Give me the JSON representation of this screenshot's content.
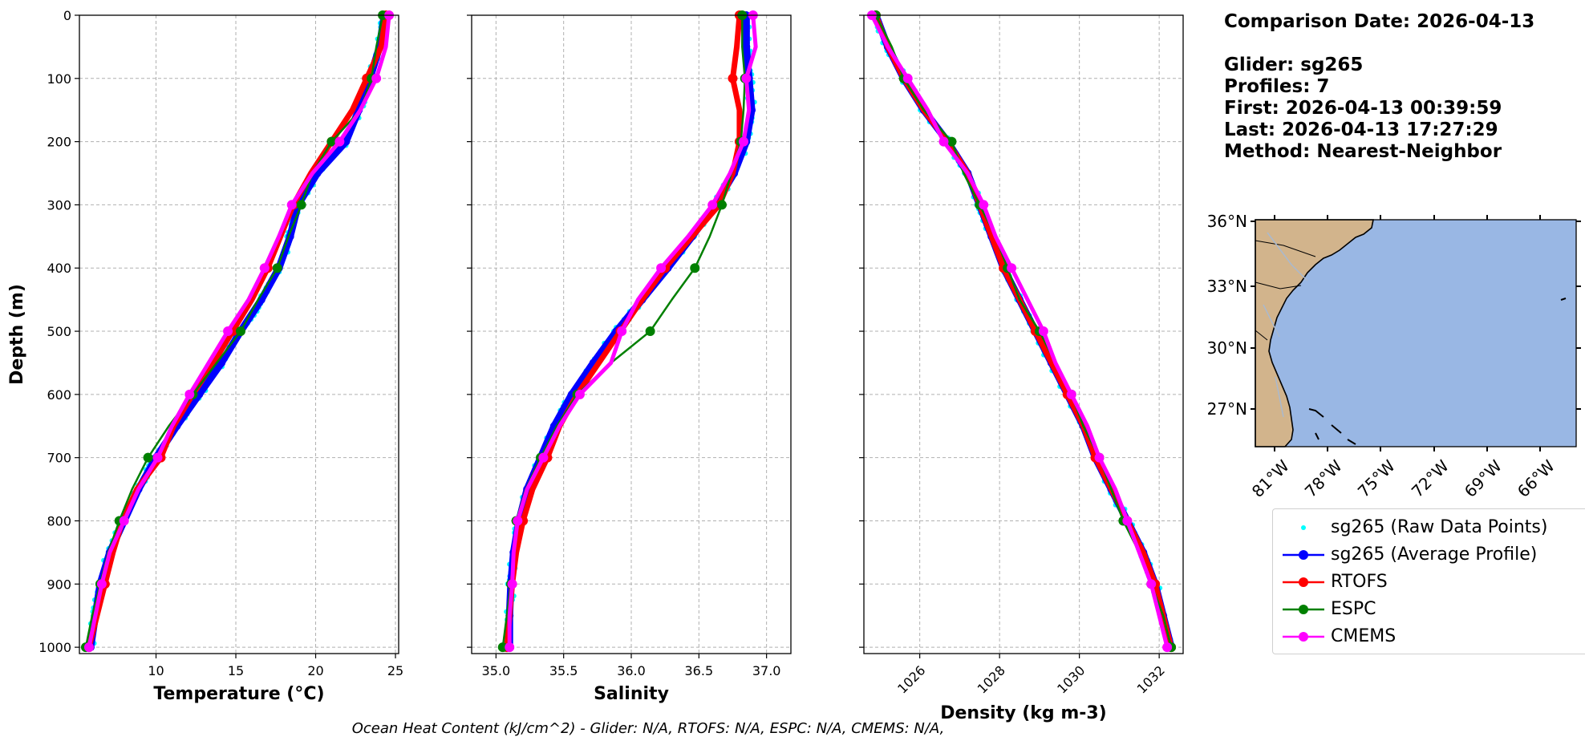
{
  "info": {
    "comparison_date": "Comparison Date: 2026-04-13",
    "glider": "Glider: sg265",
    "profiles": "Profiles: 7",
    "first": "First: 2026-04-13 00:39:59",
    "last": "Last: 2026-04-13 17:27:29",
    "method": "Method: Nearest-Neighbor"
  },
  "footer": "Ocean Heat Content (kJ/cm^2) - Glider: N/A,  RTOFS: N/A,  ESPC: N/A,  CMEMS: N/A,",
  "colors": {
    "raw": "#00ffff",
    "avg": "#0000ff",
    "rtofs": "#ff0000",
    "espc": "#008000",
    "cmems": "#ff00ff",
    "land": "#d2b48c",
    "ocean": "#99b7e4"
  },
  "legend": [
    {
      "key": "raw",
      "label": "sg265 (Raw Data Points)",
      "style": "points"
    },
    {
      "key": "avg",
      "label": "sg265 (Average Profile)",
      "style": "line-marker"
    },
    {
      "key": "rtofs",
      "label": "RTOFS",
      "style": "line-marker"
    },
    {
      "key": "espc",
      "label": "ESPC",
      "style": "line-marker"
    },
    {
      "key": "cmems",
      "label": "CMEMS",
      "style": "line-marker"
    }
  ],
  "chart_data": [
    {
      "type": "line",
      "xlabel": "Temperature (°C)",
      "ylabel": "Depth (m)",
      "xlim": [
        5.2,
        25.2
      ],
      "ylim": [
        1010,
        0
      ],
      "grid": true,
      "xticks": [
        10,
        15,
        20,
        25
      ],
      "yticks": [
        0,
        100,
        200,
        300,
        400,
        500,
        600,
        700,
        800,
        900,
        1000
      ],
      "depths": [
        0,
        50,
        100,
        150,
        200,
        250,
        300,
        350,
        400,
        450,
        500,
        550,
        600,
        650,
        700,
        750,
        800,
        850,
        900,
        950,
        1000
      ],
      "series": [
        {
          "name": "sg265 (Average Profile)",
          "key": "avg",
          "values": [
            24.3,
            24.0,
            23.4,
            22.7,
            21.9,
            20.1,
            18.9,
            18.4,
            17.7,
            16.6,
            15.3,
            14.1,
            12.7,
            11.3,
            10.0,
            8.9,
            8.0,
            7.1,
            6.5,
            6.2,
            5.9
          ]
        },
        {
          "name": "RTOFS",
          "key": "rtofs",
          "values": [
            24.4,
            24.1,
            23.2,
            22.3,
            21.0,
            19.7,
            18.6,
            17.8,
            17.0,
            16.0,
            14.8,
            13.6,
            12.3,
            11.1,
            10.3,
            8.8,
            7.9,
            7.3,
            6.8,
            6.3,
            5.8
          ]
        },
        {
          "name": "ESPC",
          "key": "espc",
          "values": [
            24.2,
            23.8,
            23.5,
            22.8,
            21.0,
            19.8,
            19.1,
            18.3,
            17.6,
            16.4,
            15.3,
            13.8,
            12.3,
            10.8,
            9.5,
            8.5,
            7.7,
            7.0,
            6.5,
            6.0,
            5.6
          ]
        },
        {
          "name": "CMEMS",
          "key": "cmems",
          "values": [
            24.6,
            24.4,
            23.8,
            22.8,
            21.5,
            19.8,
            18.5,
            17.7,
            16.8,
            15.8,
            14.5,
            13.3,
            12.1,
            11.0,
            10.1,
            8.9,
            8.0,
            7.1,
            6.6,
            6.2,
            5.8
          ]
        }
      ]
    },
    {
      "type": "line",
      "xlabel": "Salinity",
      "xlim": [
        34.82,
        37.18
      ],
      "ylim": [
        1010,
        0
      ],
      "grid": true,
      "xticks": [
        35.0,
        35.5,
        36.0,
        36.5,
        37.0
      ],
      "depths": [
        0,
        50,
        100,
        150,
        200,
        250,
        300,
        350,
        400,
        450,
        500,
        550,
        600,
        650,
        700,
        750,
        800,
        850,
        900,
        950,
        1000
      ],
      "series": [
        {
          "name": "sg265 (Average Profile)",
          "key": "avg",
          "values": [
            36.85,
            36.85,
            36.87,
            36.89,
            36.85,
            36.76,
            36.62,
            36.45,
            36.27,
            36.08,
            35.89,
            35.72,
            35.56,
            35.43,
            35.33,
            35.23,
            35.17,
            35.13,
            35.11,
            35.1,
            35.1
          ]
        },
        {
          "name": "RTOFS",
          "key": "rtofs",
          "values": [
            36.8,
            36.78,
            36.75,
            36.8,
            36.8,
            36.75,
            36.65,
            36.45,
            36.25,
            36.08,
            35.92,
            35.76,
            35.6,
            35.47,
            35.38,
            35.27,
            35.2,
            35.15,
            35.12,
            35.1,
            35.08
          ]
        },
        {
          "name": "ESPC",
          "key": "espc",
          "values": [
            36.82,
            36.82,
            36.84,
            36.83,
            36.81,
            36.74,
            36.67,
            36.58,
            36.47,
            36.3,
            36.14,
            35.85,
            35.6,
            35.45,
            35.33,
            35.22,
            35.15,
            35.13,
            35.11,
            35.08,
            35.05
          ]
        },
        {
          "name": "CMEMS",
          "key": "cmems",
          "values": [
            36.9,
            36.92,
            36.85,
            36.87,
            36.83,
            36.73,
            36.6,
            36.42,
            36.22,
            36.05,
            35.93,
            35.85,
            35.62,
            35.47,
            35.35,
            35.23,
            35.16,
            35.13,
            35.12,
            35.1,
            35.1
          ]
        }
      ]
    },
    {
      "type": "line",
      "xlabel": "Density (kg m-3)",
      "xlim": [
        1024.6,
        1032.6
      ],
      "ylim": [
        1010,
        0
      ],
      "grid": true,
      "xticks": [
        1026,
        1028,
        1030,
        1032
      ],
      "depths": [
        0,
        50,
        100,
        150,
        200,
        250,
        300,
        350,
        400,
        450,
        500,
        550,
        600,
        650,
        700,
        750,
        800,
        850,
        900,
        950,
        1000
      ],
      "series": [
        {
          "name": "sg265 (Average Profile)",
          "key": "avg",
          "values": [
            1024.9,
            1025.2,
            1025.6,
            1026.1,
            1026.7,
            1027.2,
            1027.5,
            1027.8,
            1028.1,
            1028.5,
            1028.9,
            1029.3,
            1029.7,
            1030.1,
            1030.4,
            1030.8,
            1031.2,
            1031.6,
            1031.9,
            1032.1,
            1032.3
          ]
        },
        {
          "name": "RTOFS",
          "key": "rtofs",
          "values": [
            1024.9,
            1025.2,
            1025.6,
            1026.1,
            1026.7,
            1027.2,
            1027.5,
            1027.8,
            1028.1,
            1028.5,
            1028.9,
            1029.3,
            1029.7,
            1030.1,
            1030.4,
            1030.8,
            1031.2,
            1031.6,
            1031.9,
            1032.1,
            1032.3
          ]
        },
        {
          "name": "ESPC",
          "key": "espc",
          "values": [
            1024.9,
            1025.3,
            1025.6,
            1026.1,
            1026.8,
            1027.1,
            1027.5,
            1027.9,
            1028.2,
            1028.5,
            1029.0,
            1029.4,
            1029.8,
            1030.1,
            1030.5,
            1030.8,
            1031.1,
            1031.5,
            1031.8,
            1032.1,
            1032.3
          ]
        },
        {
          "name": "CMEMS",
          "key": "cmems",
          "values": [
            1024.8,
            1025.2,
            1025.7,
            1026.2,
            1026.6,
            1027.2,
            1027.6,
            1027.9,
            1028.3,
            1028.7,
            1029.1,
            1029.4,
            1029.8,
            1030.2,
            1030.5,
            1030.9,
            1031.2,
            1031.5,
            1031.8,
            1032.0,
            1032.2
          ]
        }
      ]
    },
    {
      "type": "map",
      "lon_ticks": [
        "81°W",
        "78°W",
        "75°W",
        "72°W",
        "69°W",
        "66°W"
      ],
      "lat_ticks": [
        "36°N",
        "33°N",
        "30°N",
        "27°N"
      ],
      "lon_range": [
        -82.0,
        -64.0
      ],
      "lat_range": [
        25.2,
        36.0
      ]
    }
  ]
}
